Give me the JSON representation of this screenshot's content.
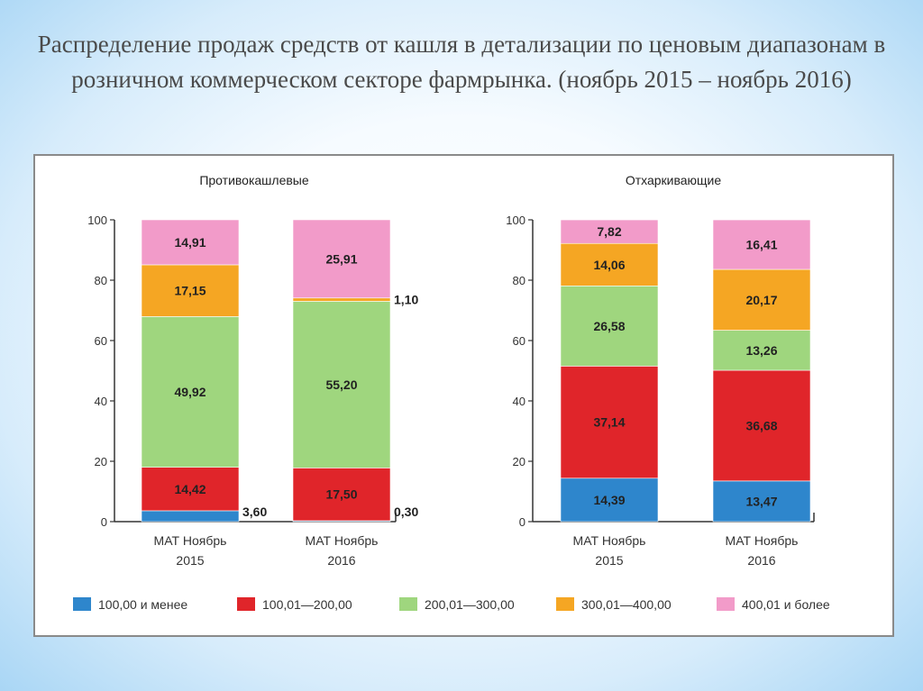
{
  "title": "Распределение продаж средств от кашля в детализации по ценовым диапазонам в розничном коммерческом секторе фармрынка. (ноябрь 2015 – ноябрь 2016)",
  "legend": [
    {
      "label": "100,00 и менее",
      "color": "#2e86cc"
    },
    {
      "label": "100,01—200,00",
      "color": "#e0252a"
    },
    {
      "label": "200,01—300,00",
      "color": "#9fd67e"
    },
    {
      "label": "300,01—400,00",
      "color": "#f5a623"
    },
    {
      "label": "400,01 и более",
      "color": "#f29bc9"
    }
  ],
  "chart_data": [
    {
      "type": "bar",
      "stacked": true,
      "title": "Противокашлевые",
      "categories": [
        "МАТ Ноябрь 2015",
        "МАТ Ноябрь 2016"
      ],
      "y_ticks": [
        "0",
        "20",
        "40",
        "60",
        "80",
        "100"
      ],
      "ylim": [
        0,
        100
      ],
      "legend_position": "bottom",
      "series": [
        {
          "name": "100,00 и менее",
          "values": [
            3.6,
            0.3
          ],
          "labels": [
            "3,60",
            "0,30"
          ]
        },
        {
          "name": "100,01—200,00",
          "values": [
            14.42,
            17.5
          ],
          "labels": [
            "14,42",
            "17,50"
          ]
        },
        {
          "name": "200,01—300,00",
          "values": [
            49.92,
            55.2
          ],
          "labels": [
            "49,92",
            "55,20"
          ]
        },
        {
          "name": "300,01—400,00",
          "values": [
            17.15,
            1.1
          ],
          "labels": [
            "17,15",
            "1,10"
          ]
        },
        {
          "name": "400,01 и более",
          "values": [
            14.91,
            25.91
          ],
          "labels": [
            "14,91",
            "25,91"
          ]
        }
      ]
    },
    {
      "type": "bar",
      "stacked": true,
      "title": "Отхаркивающие",
      "categories": [
        "МАТ Ноябрь 2015",
        "МАТ Ноябрь 2016"
      ],
      "y_ticks": [
        "0",
        "20",
        "40",
        "60",
        "80",
        "100"
      ],
      "ylim": [
        0,
        100
      ],
      "legend_position": "bottom",
      "series": [
        {
          "name": "100,00 и менее",
          "values": [
            14.39,
            13.47
          ],
          "labels": [
            "14,39",
            "13,47"
          ]
        },
        {
          "name": "100,01—200,00",
          "values": [
            37.14,
            36.68
          ],
          "labels": [
            "37,14",
            "36,68"
          ]
        },
        {
          "name": "200,01—300,00",
          "values": [
            26.58,
            13.26
          ],
          "labels": [
            "26,58",
            "13,26"
          ]
        },
        {
          "name": "300,01—400,00",
          "values": [
            14.06,
            20.17
          ],
          "labels": [
            "14,06",
            "20,17"
          ]
        },
        {
          "name": "400,01 и более",
          "values": [
            7.82,
            16.41
          ],
          "labels": [
            "7,82",
            "16,41"
          ]
        }
      ]
    }
  ]
}
